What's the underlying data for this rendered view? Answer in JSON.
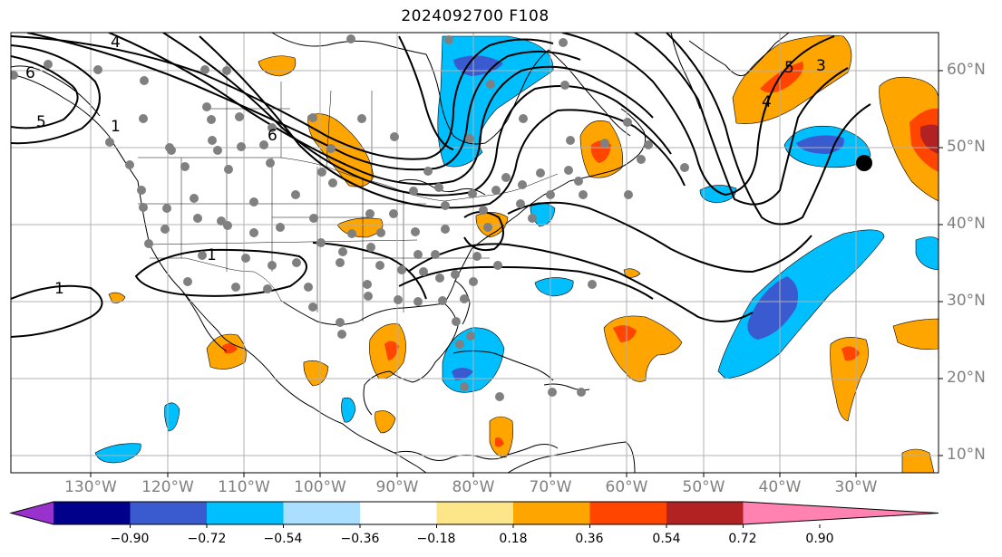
{
  "title": "2024092700 F108",
  "lon_labels": [
    "130°W",
    "120°W",
    "110°W",
    "100°W",
    "90°W",
    "80°W",
    "70°W",
    "60°W",
    "50°W",
    "40°W",
    "30°W"
  ],
  "lat_labels": [
    "60°N",
    "50°N",
    "40°N",
    "30°N",
    "20°N",
    "10°N"
  ],
  "contour_labels": [
    "4",
    "5",
    "6",
    "1",
    "1",
    "6",
    "5",
    "3",
    "4",
    "1"
  ],
  "colorbar": {
    "ticks": [
      "−0.90",
      "−0.72",
      "−0.54",
      "−0.36",
      "−0.18",
      "0.18",
      "0.36",
      "0.54",
      "0.72",
      "0.90"
    ],
    "colors": [
      "#9932cc",
      "#00008b",
      "#3a5ad0",
      "#00bfff",
      "#aadfff",
      "#ffffff",
      "#fde68a",
      "#ffa500",
      "#ff4500",
      "#b22222",
      "#ff82b0"
    ]
  }
}
